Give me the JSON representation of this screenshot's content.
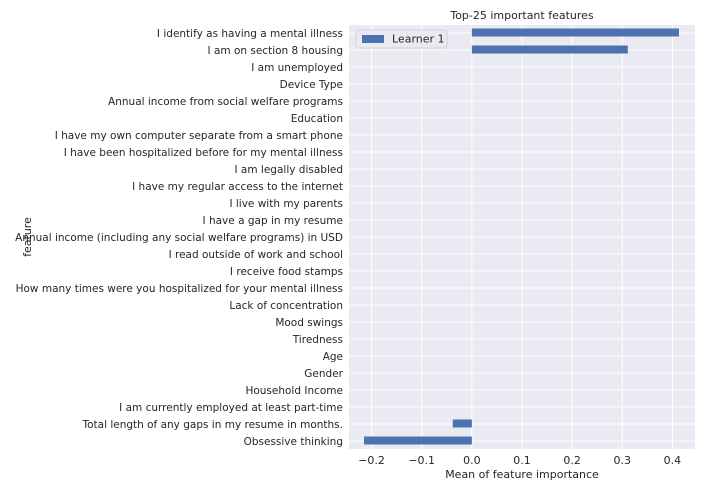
{
  "chart_data": {
    "type": "bar",
    "orientation": "horizontal",
    "title": "Top-25 important features",
    "xlabel": "Mean of feature importance",
    "ylabel": "feature",
    "xlim": [
      -0.245,
      0.445
    ],
    "xticks": [
      -0.2,
      -0.1,
      0.0,
      0.1,
      0.2,
      0.3,
      0.4
    ],
    "xtick_labels": [
      "−0.2",
      "−0.1",
      "0.0",
      "0.1",
      "0.2",
      "0.3",
      "0.4"
    ],
    "grid": true,
    "legend_position": "top-left",
    "colors": {
      "bar": "#4c72b0",
      "plot_bg": "#eaeaf2",
      "grid": "#ffffff"
    },
    "categories": [
      "I identify as having a mental illness",
      "I am on section 8 housing",
      "I am unemployed",
      "Device Type",
      "Annual income from social welfare programs",
      "Education",
      "I have my own computer separate from a smart phone",
      "I have been hospitalized before for my mental illness",
      "I am legally disabled",
      "I have my regular access to the internet",
      "I live with my parents",
      "I have a gap in my resume",
      "Annual income (including any social welfare programs) in USD",
      "I read outside of work and school",
      "I receive food stamps",
      "How many times were you hospitalized for your mental illness",
      "Lack of concentration",
      "Mood swings",
      "Tiredness",
      "Age",
      "Gender",
      "Household Income",
      "I am currently employed at least part-time",
      "Total length of any gaps in my resume in months.",
      "Obsessive thinking"
    ],
    "series": [
      {
        "name": "Learner 1",
        "values": [
          0.413,
          0.311,
          0,
          0,
          0,
          0,
          0,
          0,
          0,
          0,
          0,
          0,
          0,
          0,
          0,
          0,
          0,
          0,
          0,
          0,
          0,
          0,
          0,
          -0.038,
          -0.215
        ]
      }
    ]
  }
}
